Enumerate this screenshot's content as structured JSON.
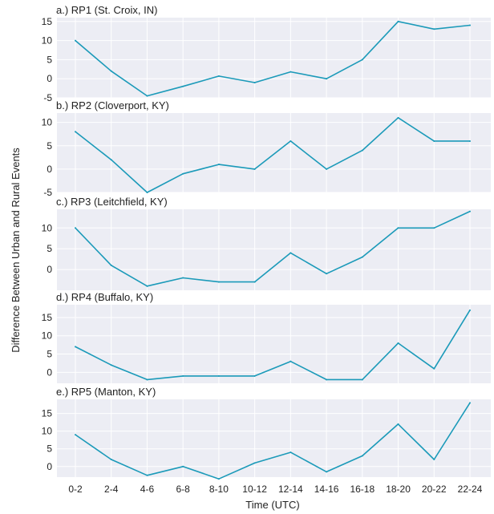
{
  "chart_data": {
    "type": "line",
    "line_color": "#1b9ab9",
    "panel_background": "#ecedf4",
    "grid": true,
    "xlabel": "Time (UTC)",
    "ylabel": "Difference Between Urban and Rural Events",
    "categories": [
      "0-2",
      "2-4",
      "4-6",
      "6-8",
      "8-10",
      "10-12",
      "12-14",
      "14-16",
      "16-18",
      "18-20",
      "20-22",
      "22-24"
    ],
    "panels": [
      {
        "title": "a.) RP1 (St. Croix, IN)",
        "ylim": [
          -5,
          16
        ],
        "yticks": [
          -5,
          0,
          5,
          10,
          15
        ],
        "values": [
          10,
          2,
          -4.5,
          -2,
          0.7,
          -1,
          1.8,
          0,
          5,
          15,
          13,
          14
        ]
      },
      {
        "title": "b.) RP2 (Cloverport, KY)",
        "ylim": [
          -5,
          12
        ],
        "yticks": [
          -5,
          0,
          5,
          10
        ],
        "values": [
          8,
          2,
          -5,
          -1,
          1,
          0,
          6,
          0,
          4,
          11,
          6,
          6
        ]
      },
      {
        "title": "c.) RP3 (Leitchfield, KY)",
        "ylim": [
          -5,
          14.5
        ],
        "yticks": [
          0,
          5,
          10
        ],
        "values": [
          10,
          1,
          -4,
          -2,
          -3,
          -3,
          4,
          -1,
          3,
          10,
          10,
          14
        ]
      },
      {
        "title": "d.) RP4 (Buffalo, KY)",
        "ylim": [
          -3,
          18.5
        ],
        "yticks": [
          0,
          5,
          10,
          15
        ],
        "values": [
          7,
          2,
          -2,
          -1,
          -1,
          -1,
          3,
          -2,
          -2,
          8,
          1,
          17
        ]
      },
      {
        "title": "e.) RP5 (Manton, KY)",
        "ylim": [
          -3,
          19
        ],
        "yticks": [
          0,
          5,
          10,
          15
        ],
        "values": [
          9,
          2,
          -2.5,
          0,
          -3.5,
          1,
          4,
          -1.5,
          3,
          12,
          2,
          18
        ]
      }
    ]
  }
}
